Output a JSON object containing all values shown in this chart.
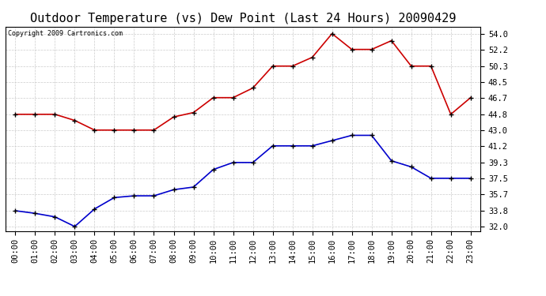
{
  "title": "Outdoor Temperature (vs) Dew Point (Last 24 Hours) 20090429",
  "copyright": "Copyright 2009 Cartronics.com",
  "hours": [
    "00:00",
    "01:00",
    "02:00",
    "03:00",
    "04:00",
    "05:00",
    "06:00",
    "07:00",
    "08:00",
    "09:00",
    "10:00",
    "11:00",
    "12:00",
    "13:00",
    "14:00",
    "15:00",
    "16:00",
    "17:00",
    "18:00",
    "19:00",
    "20:00",
    "21:00",
    "22:00",
    "23:00"
  ],
  "temp": [
    44.8,
    44.8,
    44.8,
    44.1,
    43.0,
    43.0,
    43.0,
    43.0,
    44.5,
    45.0,
    46.7,
    46.7,
    47.8,
    50.3,
    50.3,
    51.3,
    54.0,
    52.2,
    52.2,
    53.2,
    50.3,
    50.3,
    44.8,
    46.7
  ],
  "dewpoint": [
    33.8,
    33.5,
    33.1,
    32.0,
    34.0,
    35.3,
    35.5,
    35.5,
    36.2,
    36.5,
    38.5,
    39.3,
    39.3,
    41.2,
    41.2,
    41.2,
    41.8,
    42.4,
    42.4,
    39.5,
    38.8,
    37.5,
    37.5,
    37.5
  ],
  "temp_color": "#cc0000",
  "dew_color": "#0000cc",
  "marker": "+",
  "markersize": 5,
  "markeredgewidth": 1.0,
  "linewidth": 1.2,
  "grid_color": "#cccccc",
  "bg_color": "#ffffff",
  "yticks": [
    32.0,
    33.8,
    35.7,
    37.5,
    39.3,
    41.2,
    43.0,
    44.8,
    46.7,
    48.5,
    50.3,
    52.2,
    54.0
  ],
  "ylim": [
    31.5,
    54.8
  ],
  "title_fontsize": 11,
  "copyright_fontsize": 6,
  "tick_fontsize": 7.5,
  "fig_width": 6.9,
  "fig_height": 3.75,
  "dpi": 100
}
